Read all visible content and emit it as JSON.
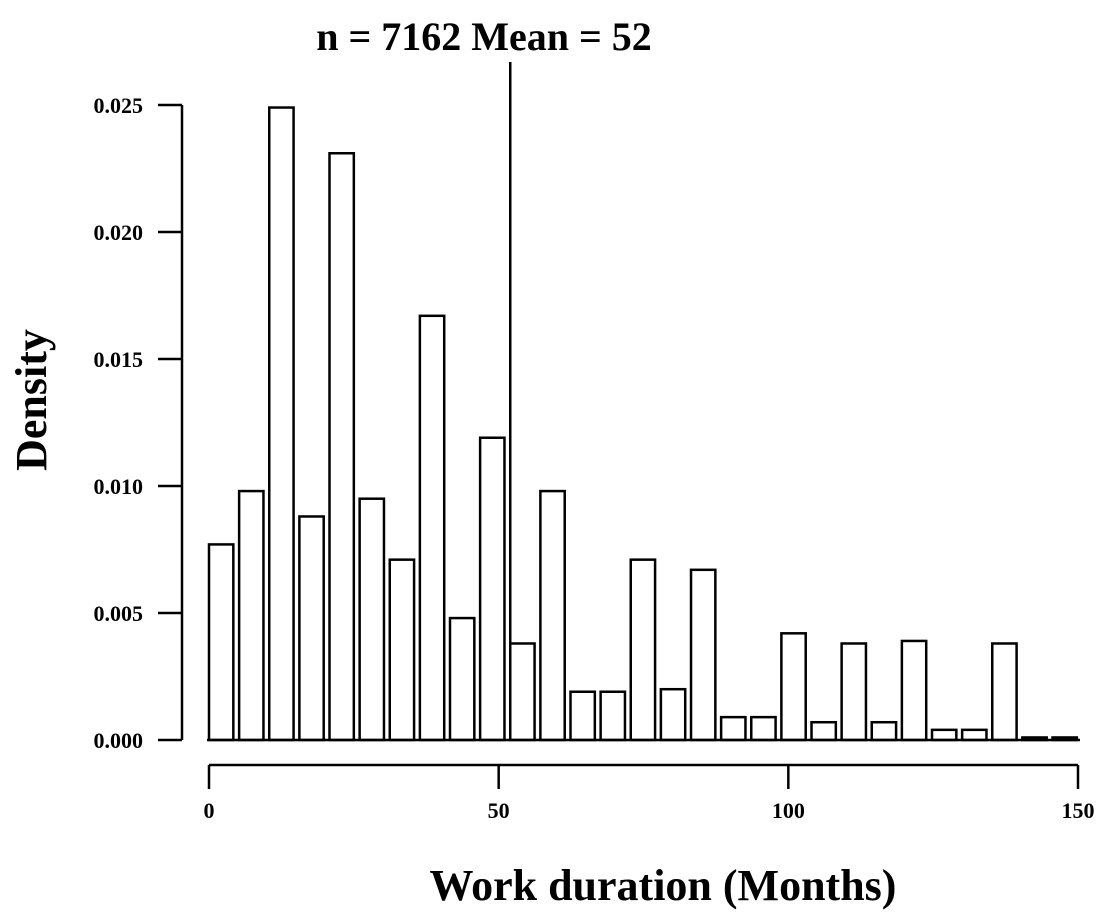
{
  "chart_data": {
    "type": "bar",
    "title": "n = 7162 Mean = 52",
    "xlabel": "Work duration (Months)",
    "ylabel": "Density",
    "xlim": [
      0,
      150
    ],
    "ylim": [
      0,
      0.025
    ],
    "x_ticks": [
      0,
      50,
      100,
      150
    ],
    "x_tick_labels": [
      "0",
      "50",
      "100",
      "150"
    ],
    "y_ticks": [
      0,
      0.005,
      0.01,
      0.015,
      0.02,
      0.025
    ],
    "y_tick_labels": [
      "0.000",
      "0.005",
      "0.010",
      "0.015",
      "0.020",
      "0.025"
    ],
    "mean": 52,
    "n": 7162,
    "bin_width": 5.2,
    "bins": [
      {
        "x0": 0.0,
        "x1": 4.2,
        "value": 0.0077
      },
      {
        "x0": 5.2,
        "x1": 9.4,
        "value": 0.0098
      },
      {
        "x0": 10.4,
        "x1": 14.6,
        "value": 0.0249
      },
      {
        "x0": 15.6,
        "x1": 19.8,
        "value": 0.0088
      },
      {
        "x0": 20.8,
        "x1": 25.0,
        "value": 0.0231
      },
      {
        "x0": 26.0,
        "x1": 30.2,
        "value": 0.0095
      },
      {
        "x0": 31.2,
        "x1": 35.4,
        "value": 0.0071
      },
      {
        "x0": 36.4,
        "x1": 40.6,
        "value": 0.0167
      },
      {
        "x0": 41.6,
        "x1": 45.8,
        "value": 0.0048
      },
      {
        "x0": 46.8,
        "x1": 51.0,
        "value": 0.0119
      },
      {
        "x0": 52.0,
        "x1": 56.2,
        "value": 0.0038
      },
      {
        "x0": 57.2,
        "x1": 61.4,
        "value": 0.0098
      },
      {
        "x0": 62.4,
        "x1": 66.6,
        "value": 0.0019
      },
      {
        "x0": 67.6,
        "x1": 71.8,
        "value": 0.0019
      },
      {
        "x0": 72.8,
        "x1": 77.0,
        "value": 0.0071
      },
      {
        "x0": 78.0,
        "x1": 82.2,
        "value": 0.002
      },
      {
        "x0": 83.2,
        "x1": 87.4,
        "value": 0.0067
      },
      {
        "x0": 88.4,
        "x1": 92.6,
        "value": 0.0009
      },
      {
        "x0": 93.6,
        "x1": 97.8,
        "value": 0.0009
      },
      {
        "x0": 98.8,
        "x1": 103.0,
        "value": 0.0042
      },
      {
        "x0": 104.0,
        "x1": 108.2,
        "value": 0.0007
      },
      {
        "x0": 109.2,
        "x1": 113.4,
        "value": 0.0038
      },
      {
        "x0": 114.4,
        "x1": 118.6,
        "value": 0.0007
      },
      {
        "x0": 119.6,
        "x1": 123.8,
        "value": 0.0039
      },
      {
        "x0": 124.8,
        "x1": 129.0,
        "value": 0.0004
      },
      {
        "x0": 130.0,
        "x1": 134.2,
        "value": 0.0004
      },
      {
        "x0": 135.2,
        "x1": 139.4,
        "value": 0.0038
      },
      {
        "x0": 140.4,
        "x1": 144.6,
        "value": 0.0001
      },
      {
        "x0": 145.6,
        "x1": 149.8,
        "value": 0.0001
      }
    ],
    "grid": false,
    "legend": "none"
  }
}
